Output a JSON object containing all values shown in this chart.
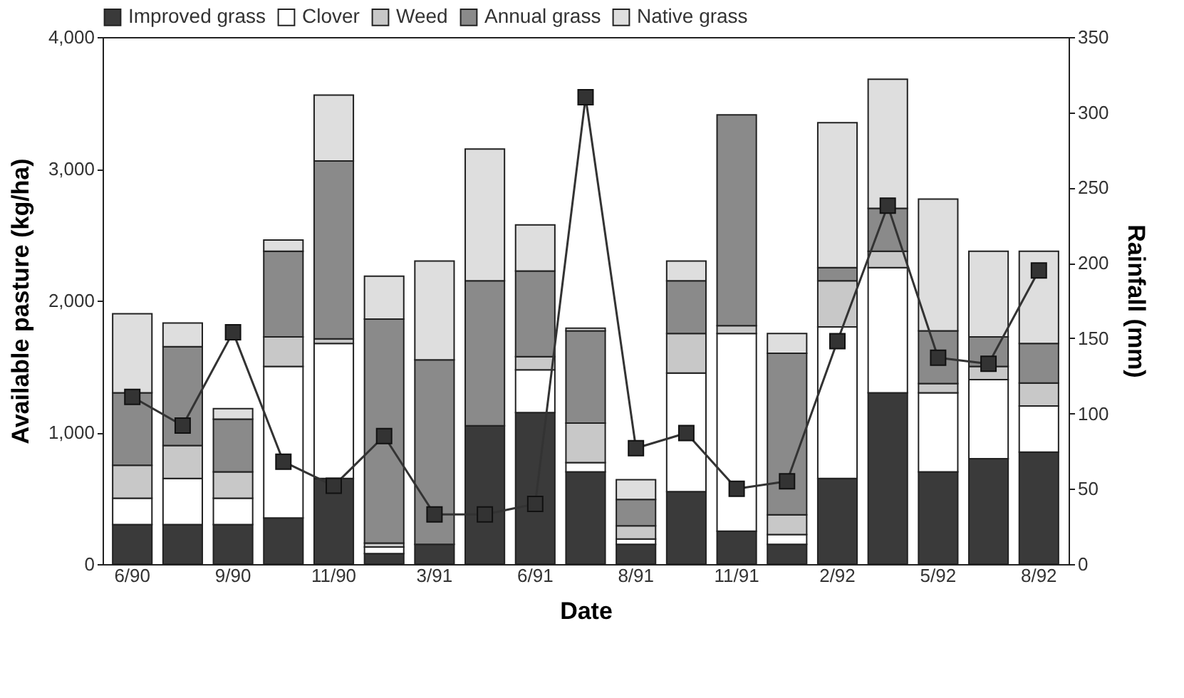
{
  "chart_data": {
    "type": "bar",
    "stacked": true,
    "xlabel": "Date",
    "ylabel": "Available pasture (kg/ha)",
    "y2label": "Rainfall (mm)",
    "categories": [
      "6/90",
      null,
      "9/90",
      null,
      "11/90",
      null,
      "3/91",
      null,
      "6/91",
      null,
      "8/91",
      null,
      "11/91",
      null,
      "2/92",
      null,
      "5/92",
      null,
      "8/92"
    ],
    "series": [
      {
        "name": "Improved grass",
        "color": "#3a3a3a",
        "values": [
          300,
          300,
          300,
          350,
          650,
          80,
          150,
          1050,
          1150,
          700,
          150,
          550,
          250,
          150,
          650,
          1300,
          700,
          800,
          850
        ]
      },
      {
        "name": "Clover",
        "color": "#ffffff",
        "values": [
          200,
          350,
          200,
          1150,
          1025,
          50,
          null,
          null,
          325,
          70,
          40,
          900,
          1500,
          75,
          1150,
          950,
          600,
          600,
          350
        ]
      },
      {
        "name": "Weed",
        "color": "#c8c8c8",
        "values": [
          250,
          250,
          200,
          225,
          35,
          30,
          null,
          null,
          100,
          300,
          100,
          300,
          60,
          150,
          350,
          125,
          70,
          100,
          175
        ]
      },
      {
        "name": "Annual grass",
        "color": "#8a8a8a",
        "values": [
          550,
          750,
          400,
          650,
          1350,
          1700,
          1400,
          1100,
          650,
          700,
          200,
          400,
          1600,
          1225,
          100,
          325,
          400,
          225,
          300
        ]
      },
      {
        "name": "Native grass",
        "color": "#dedede",
        "values": [
          600,
          180,
          80,
          85,
          500,
          325,
          750,
          1000,
          350,
          20,
          150,
          150,
          null,
          150,
          1100,
          980,
          1000,
          650,
          700
        ]
      },
      {
        "type": "line",
        "axis": "y2",
        "color": "#333333",
        "marker": "square",
        "line_style": "solid",
        "values": [
          111,
          92,
          154,
          68,
          52,
          85,
          33,
          33,
          40,
          310,
          77,
          87,
          50,
          55,
          148,
          238,
          137,
          133,
          195
        ]
      }
    ],
    "ylim": [
      0,
      4000
    ],
    "yticks": [
      0,
      {
        "value": 1000,
        "label": "1,000"
      },
      {
        "value": 2000,
        "label": "2,000"
      },
      {
        "value": 3000,
        "label": "3,000"
      },
      {
        "value": 4000,
        "label": "4,000"
      }
    ],
    "y2lim": [
      0,
      350
    ],
    "y2ticks": [
      0,
      50,
      100,
      150,
      200,
      250,
      300,
      350
    ],
    "grid": false,
    "legend": "top"
  }
}
